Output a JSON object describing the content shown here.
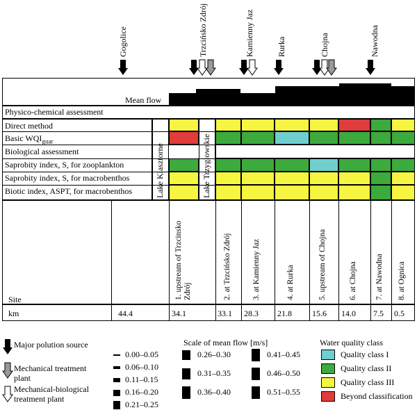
{
  "towns": [
    {
      "name": "Gogolice"
    },
    {
      "name": "Trzcińsko Zdrój"
    },
    {
      "name": "Kamienny Jaz"
    },
    {
      "name": "Rurka"
    },
    {
      "name": "Chojna"
    },
    {
      "name": "Nawodna"
    }
  ],
  "rows": {
    "mean_flow": "Mean flow",
    "physico": "Physico-chemical assessment",
    "direct": "Direct method",
    "wqi_main": "Basic WQI",
    "wqi_sub": "guar",
    "bio": "Biological assessment",
    "sapro_zoo": "Saprobity index, S, for zooplankton",
    "sapro_macro": "Saprobity index, S, for macrobenthos",
    "biotic": "Biotic index, ASPT, for macrobenthos"
  },
  "lakes": {
    "lake1": "Lake Klasztorne",
    "lake2": "Lake Trzygłowskie"
  },
  "sites": [
    "1. upstream of Trzcinsko Zdrój",
    "2. at Trzcińsko Zdrój",
    "3. at Kamienny Jaz",
    "4. at Rurka",
    "5. upstream of Chojna",
    "6. at Chojna",
    "7. at Nawodna",
    "8. at Ognica"
  ],
  "site_label": "Site",
  "km_label": "km",
  "km_values": [
    "44.4",
    "34.1",
    "33.1",
    "28.3",
    "21.8",
    "15.6",
    "14.0",
    "7.5",
    "0.5"
  ],
  "quality_grid": {
    "direct": [
      "III",
      "III",
      "III",
      "III",
      "III",
      "beyond",
      "II",
      "III"
    ],
    "wqi": [
      "beyond",
      "II",
      "II",
      "I",
      "II",
      "II",
      "II",
      "II"
    ],
    "sapro_zoo": [
      "II",
      "II",
      "II",
      "II",
      "I",
      "II",
      "II",
      "II"
    ],
    "sapro_macro": [
      "III",
      "III",
      "III",
      "III",
      "III",
      "III",
      "II",
      "III"
    ],
    "biotic": [
      "III",
      "III",
      "III",
      "III",
      "III",
      "III",
      "II",
      "III"
    ]
  },
  "colors": {
    "I": "#6fcfcf",
    "II": "#3caa3c",
    "III": "#f5f542",
    "beyond": "#e03c3c"
  },
  "legend": {
    "major": "Major polution source",
    "mech": "Mechanical treatment plant",
    "mechbio": "Mechanical-biological treatment plant",
    "scale_title": "Scale of mean flow [m/s]",
    "scale_items": [
      "0.00–0.05",
      "0.06–0.10",
      "0.11–0.15",
      "0.16–0.20",
      "0.21–0.25",
      "0.26–0.30",
      "0.31–0.35",
      "0.36–0.40",
      "0.41–0.45",
      "0.46–0.50",
      "0.51–0.55"
    ],
    "quality_title": "Water quality class",
    "q1": "Quality class I",
    "q2": "Quality class II",
    "q3": "Quality class III",
    "qb": "Beyond classification"
  }
}
